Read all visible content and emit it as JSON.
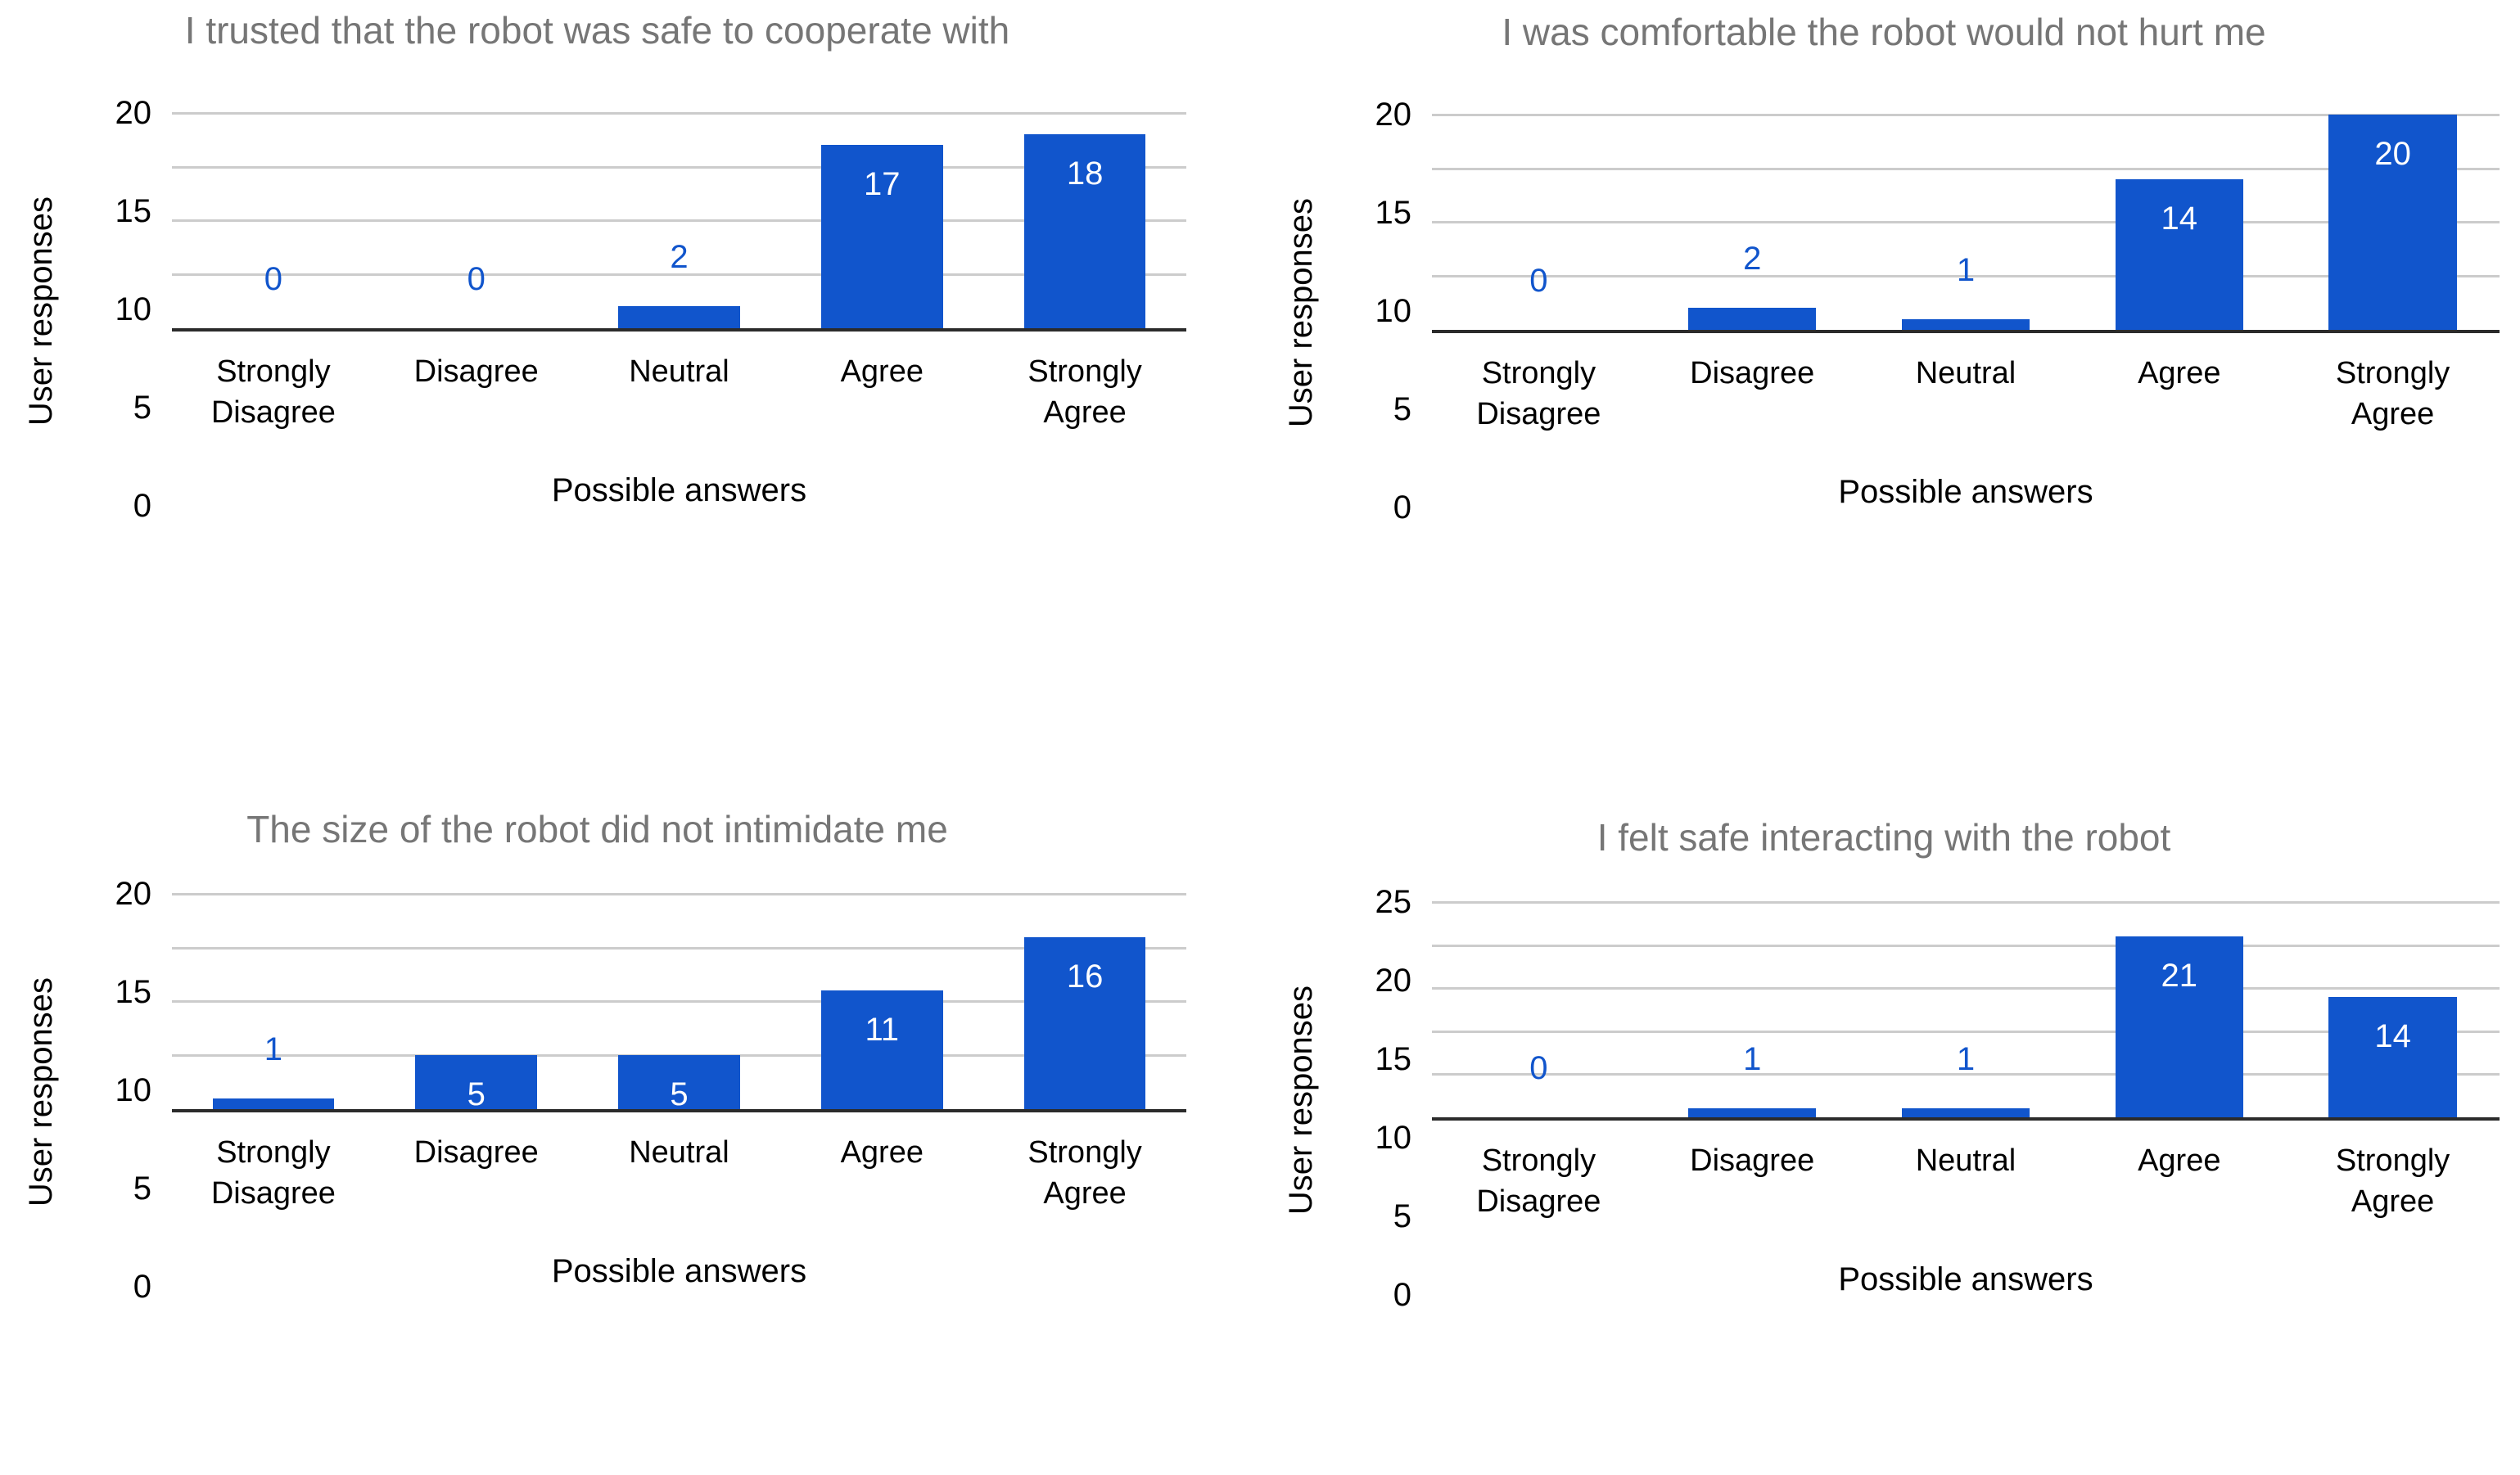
{
  "page": {
    "background": "#ffffff"
  },
  "colors": {
    "bar": "#1155cc",
    "value_label_outside": "#1155cc",
    "value_label_inside": "#ffffff",
    "chart_title": "#767676",
    "axis_text": "#000000",
    "gridline": "#cccccc",
    "baseline": "#2b2b2b"
  },
  "chart_data": [
    {
      "type": "bar",
      "title": "I trusted that the robot was safe to cooperate with",
      "xlabel": "Possible answers",
      "ylabel": "User responses",
      "categories": [
        "Strongly Disagree",
        "Disagree",
        "Neutral",
        "Agree",
        "Strongly Agree"
      ],
      "values": [
        0,
        0,
        2,
        17,
        18
      ],
      "ylim": [
        0,
        20
      ],
      "ytick_step": 5,
      "grid": true,
      "legend": "none",
      "bar_color": "#1155cc"
    },
    {
      "type": "bar",
      "title": "I was comfortable the robot would not hurt me",
      "xlabel": "Possible answers",
      "ylabel": "User responses",
      "categories": [
        "Strongly Disagree",
        "Disagree",
        "Neutral",
        "Agree",
        "Strongly Agree"
      ],
      "values": [
        0,
        2,
        1,
        14,
        20
      ],
      "ylim": [
        0,
        20
      ],
      "ytick_step": 5,
      "grid": true,
      "legend": "none",
      "bar_color": "#1155cc"
    },
    {
      "type": "bar",
      "title": "The size of the robot did not intimidate me",
      "xlabel": "Possible answers",
      "ylabel": "User responses",
      "categories": [
        "Strongly Disagree",
        "Disagree",
        "Neutral",
        "Agree",
        "Strongly Agree"
      ],
      "values": [
        1,
        5,
        5,
        11,
        16
      ],
      "ylim": [
        0,
        20
      ],
      "ytick_step": 5,
      "grid": true,
      "legend": "none",
      "bar_color": "#1155cc"
    },
    {
      "type": "bar",
      "title": "I felt safe interacting with the robot",
      "xlabel": "Possible answers",
      "ylabel": "User responses",
      "categories": [
        "Strongly Disagree",
        "Disagree",
        "Neutral",
        "Agree",
        "Strongly Agree"
      ],
      "values": [
        0,
        1,
        1,
        21,
        14
      ],
      "ylim": [
        0,
        25
      ],
      "ytick_step": 5,
      "grid": true,
      "legend": "none",
      "bar_color": "#1155cc"
    }
  ]
}
